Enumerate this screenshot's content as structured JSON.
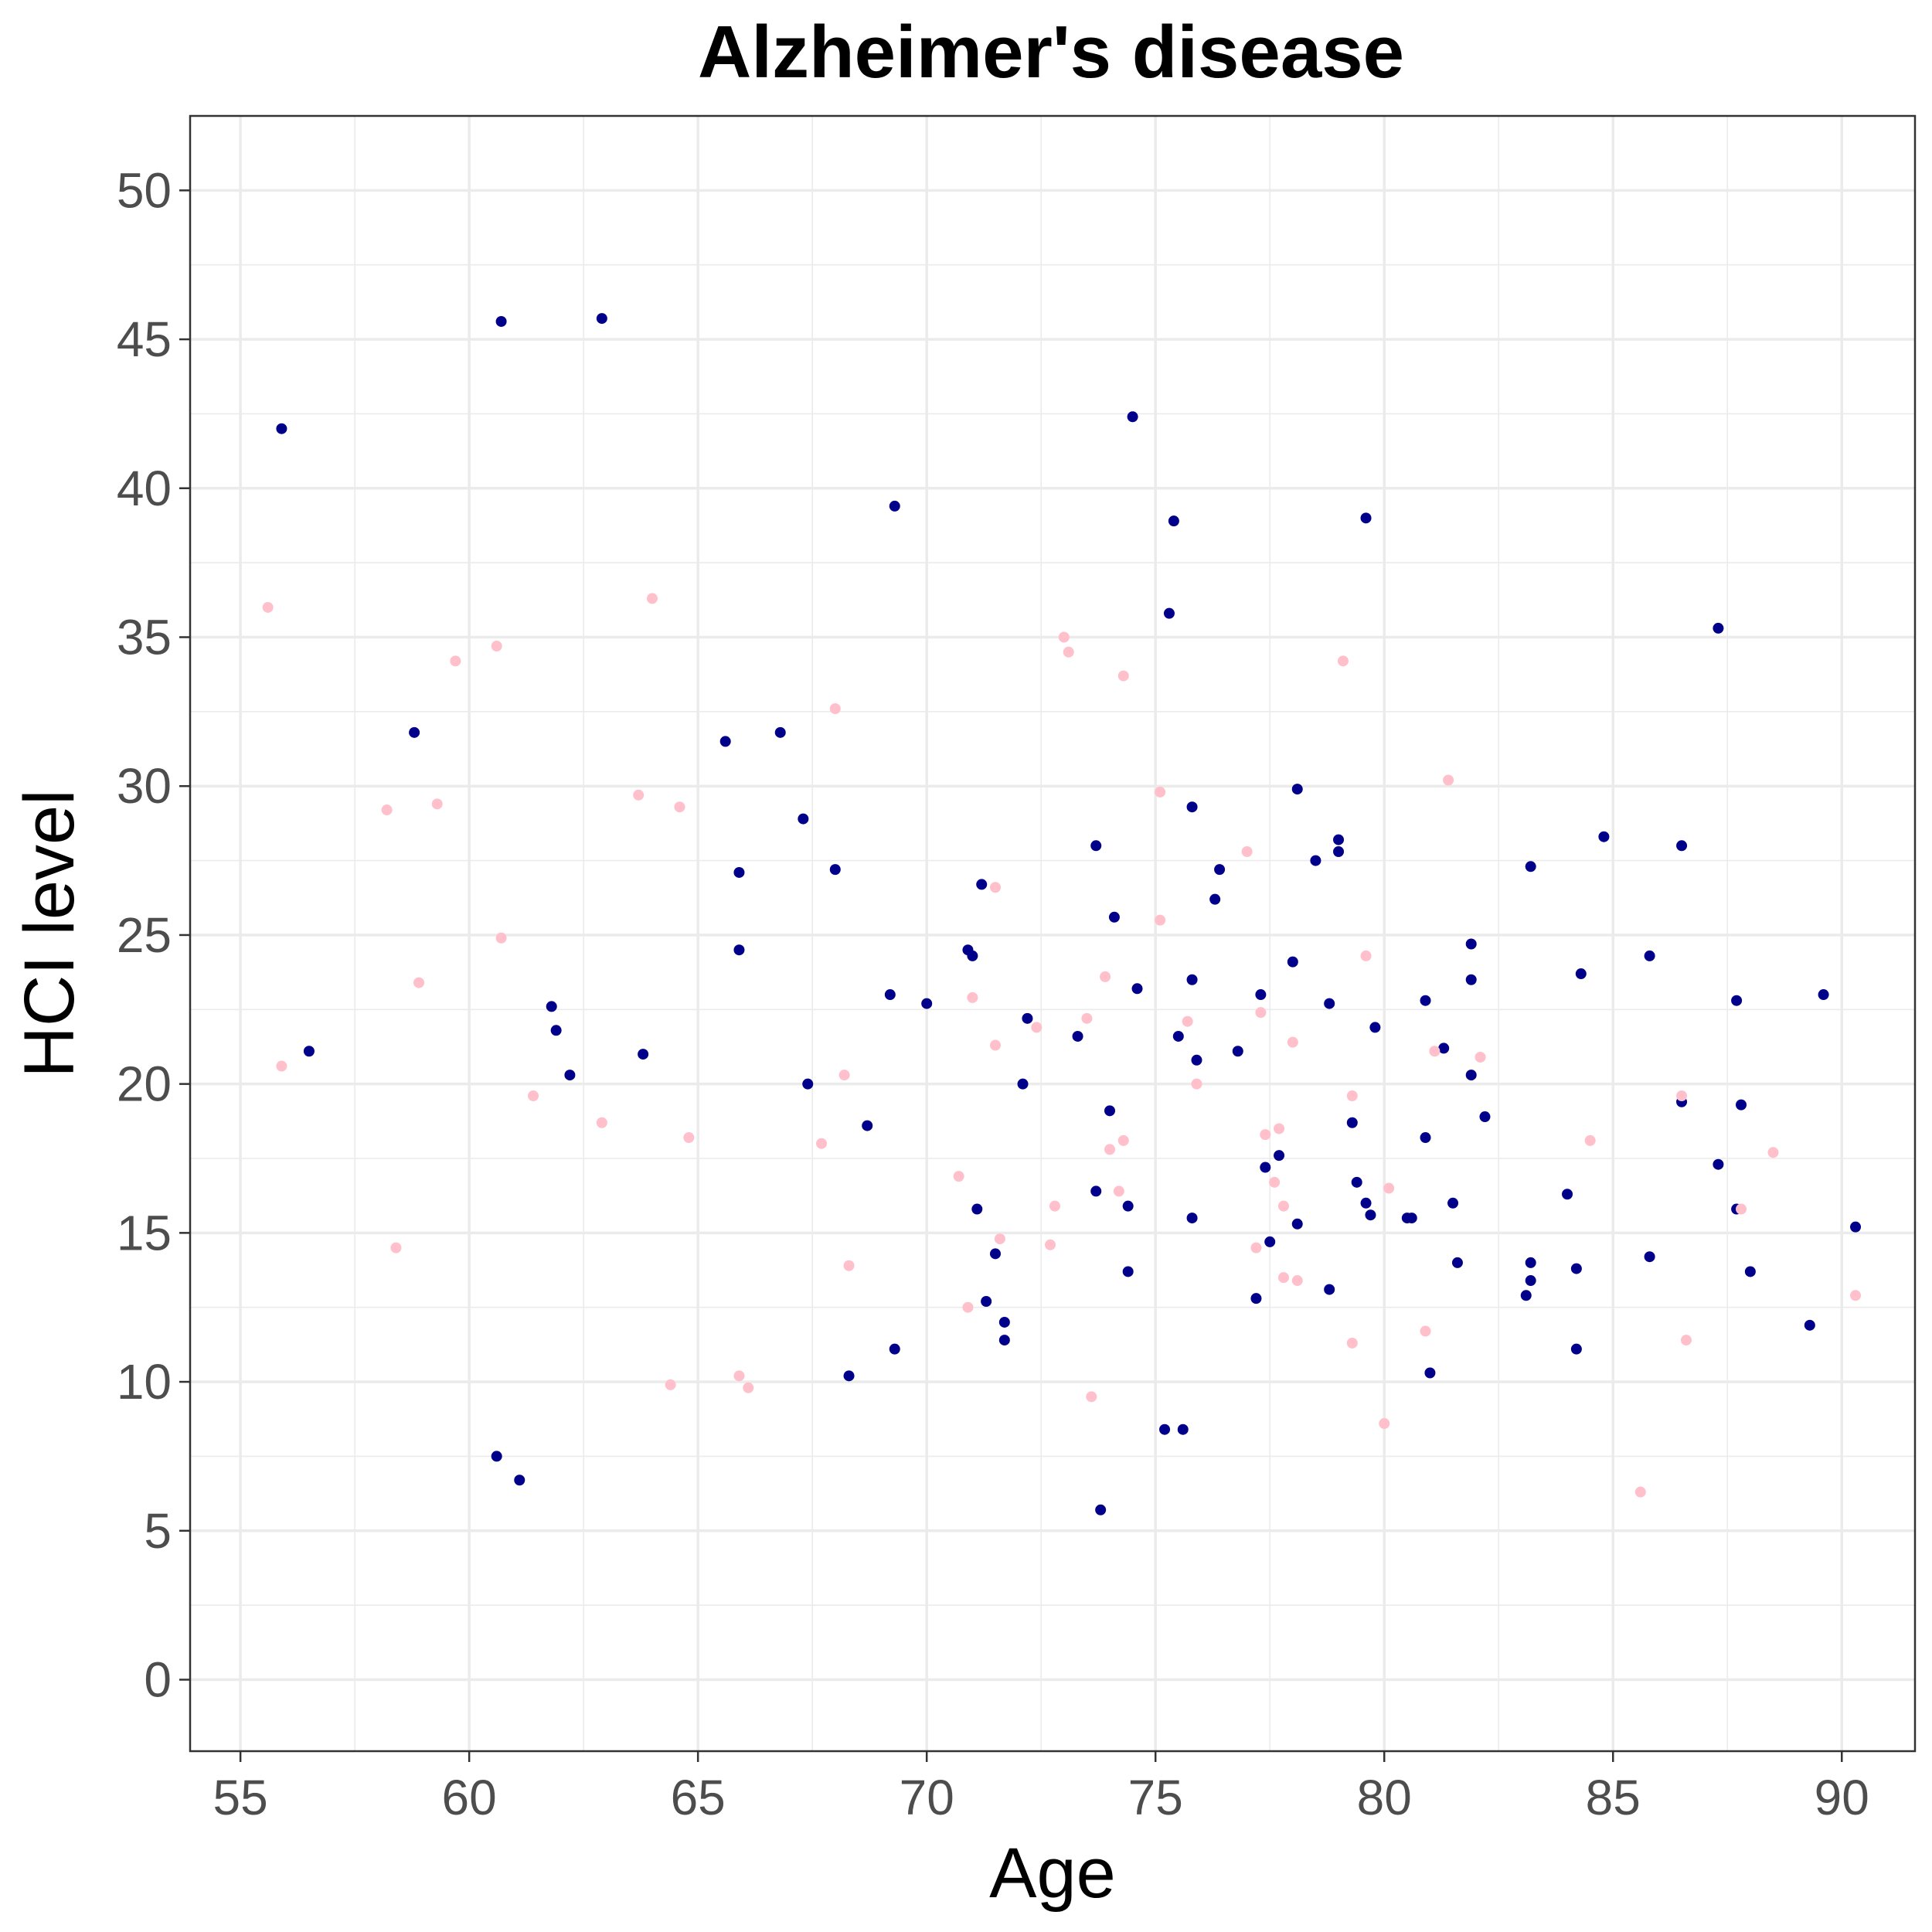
{
  "chart_data": {
    "type": "scatter",
    "title": "Alzheimer's disease",
    "xlabel": "Age",
    "ylabel": "HCI level",
    "xlim": [
      53.9,
      91.6
    ],
    "ylim": [
      -2.4,
      52.5
    ],
    "xticks": [
      55,
      60,
      65,
      70,
      75,
      80,
      85,
      90
    ],
    "xtick_labels": [
      "55",
      "60",
      "65",
      "70",
      "75",
      "80",
      "85",
      "90"
    ],
    "yticks": [
      0,
      5,
      10,
      15,
      20,
      25,
      30,
      35,
      40,
      45,
      50
    ],
    "ytick_labels": [
      "0",
      "5",
      "10",
      "15",
      "20",
      "25",
      "30",
      "35",
      "40",
      "45",
      "50"
    ],
    "grid": true,
    "legend": "none",
    "series": [
      {
        "color": "#00008b",
        "points": [
          [
            55.9,
            42.0
          ],
          [
            56.5,
            21.1
          ],
          [
            58.8,
            31.8
          ],
          [
            60.6,
            7.5
          ],
          [
            60.7,
            45.6
          ],
          [
            61.1,
            6.7
          ],
          [
            61.8,
            22.6
          ],
          [
            61.9,
            21.8
          ],
          [
            62.2,
            20.3
          ],
          [
            62.9,
            45.7
          ],
          [
            63.8,
            21.0
          ],
          [
            65.6,
            31.5
          ],
          [
            65.9,
            27.1
          ],
          [
            65.9,
            24.5
          ],
          [
            66.8,
            31.8
          ],
          [
            67.3,
            28.9
          ],
          [
            67.4,
            20.0
          ],
          [
            68.0,
            27.2
          ],
          [
            68.3,
            10.2
          ],
          [
            68.7,
            18.6
          ],
          [
            69.2,
            23.0
          ],
          [
            69.3,
            11.1
          ],
          [
            69.3,
            39.4
          ],
          [
            70.0,
            22.7
          ],
          [
            70.9,
            24.5
          ],
          [
            71.0,
            24.3
          ],
          [
            71.1,
            15.8
          ],
          [
            71.2,
            26.7
          ],
          [
            71.3,
            12.7
          ],
          [
            71.5,
            14.3
          ],
          [
            71.7,
            12.0
          ],
          [
            71.7,
            11.4
          ],
          [
            72.1,
            20.0
          ],
          [
            72.2,
            22.2
          ],
          [
            73.3,
            21.6
          ],
          [
            73.7,
            28.0
          ],
          [
            73.7,
            16.4
          ],
          [
            73.8,
            5.7
          ],
          [
            74.0,
            19.1
          ],
          [
            74.1,
            25.6
          ],
          [
            74.4,
            15.9
          ],
          [
            74.4,
            13.7
          ],
          [
            74.5,
            42.4
          ],
          [
            74.6,
            23.2
          ],
          [
            75.2,
            8.4
          ],
          [
            75.3,
            35.8
          ],
          [
            75.4,
            38.9
          ],
          [
            75.5,
            21.6
          ],
          [
            75.6,
            8.4
          ],
          [
            75.8,
            29.3
          ],
          [
            75.8,
            23.5
          ],
          [
            75.8,
            15.5
          ],
          [
            75.9,
            20.8
          ],
          [
            76.3,
            26.2
          ],
          [
            76.4,
            27.2
          ],
          [
            76.8,
            21.1
          ],
          [
            77.2,
            12.8
          ],
          [
            77.3,
            23.0
          ],
          [
            77.4,
            17.2
          ],
          [
            77.5,
            14.7
          ],
          [
            77.7,
            17.6
          ],
          [
            78.0,
            24.1
          ],
          [
            78.1,
            29.9
          ],
          [
            78.1,
            15.3
          ],
          [
            78.5,
            27.5
          ],
          [
            78.8,
            22.7
          ],
          [
            78.8,
            13.1
          ],
          [
            79.0,
            28.2
          ],
          [
            79.0,
            27.8
          ],
          [
            79.3,
            18.7
          ],
          [
            79.4,
            16.7
          ],
          [
            79.6,
            39.0
          ],
          [
            79.6,
            16.0
          ],
          [
            79.7,
            15.6
          ],
          [
            79.8,
            21.9
          ],
          [
            80.5,
            15.5
          ],
          [
            80.6,
            15.5
          ],
          [
            80.9,
            22.8
          ],
          [
            80.9,
            18.2
          ],
          [
            81.0,
            10.3
          ],
          [
            81.3,
            21.2
          ],
          [
            81.5,
            16.0
          ],
          [
            81.6,
            14.0
          ],
          [
            81.9,
            24.7
          ],
          [
            81.9,
            23.5
          ],
          [
            81.9,
            20.3
          ],
          [
            82.2,
            18.9
          ],
          [
            83.1,
            12.9
          ],
          [
            83.2,
            14.0
          ],
          [
            83.2,
            13.4
          ],
          [
            83.2,
            27.3
          ],
          [
            84.0,
            16.3
          ],
          [
            84.2,
            13.8
          ],
          [
            84.2,
            11.1
          ],
          [
            84.3,
            23.7
          ],
          [
            84.8,
            28.3
          ],
          [
            85.8,
            24.3
          ],
          [
            85.8,
            14.2
          ],
          [
            86.5,
            28.0
          ],
          [
            86.5,
            19.4
          ],
          [
            87.3,
            35.3
          ],
          [
            87.3,
            17.3
          ],
          [
            87.7,
            22.8
          ],
          [
            87.7,
            15.8
          ],
          [
            87.8,
            19.3
          ],
          [
            88.0,
            13.7
          ],
          [
            89.3,
            11.9
          ],
          [
            89.6,
            23.0
          ],
          [
            90.3,
            15.2
          ]
        ]
      },
      {
        "color": "#ffc0cb",
        "points": [
          [
            55.6,
            36.0
          ],
          [
            55.9,
            20.6
          ],
          [
            58.2,
            29.2
          ],
          [
            58.4,
            14.5
          ],
          [
            58.9,
            23.4
          ],
          [
            59.3,
            29.4
          ],
          [
            59.7,
            34.2
          ],
          [
            60.6,
            34.7
          ],
          [
            60.7,
            24.9
          ],
          [
            61.4,
            19.6
          ],
          [
            62.9,
            18.7
          ],
          [
            63.7,
            29.7
          ],
          [
            64.0,
            36.3
          ],
          [
            64.4,
            9.9
          ],
          [
            64.6,
            29.3
          ],
          [
            64.8,
            18.2
          ],
          [
            65.9,
            10.2
          ],
          [
            66.1,
            9.8
          ],
          [
            67.7,
            18.0
          ],
          [
            68.0,
            32.6
          ],
          [
            68.2,
            20.3
          ],
          [
            68.3,
            13.9
          ],
          [
            70.7,
            16.9
          ],
          [
            70.9,
            12.5
          ],
          [
            71.0,
            22.9
          ],
          [
            71.5,
            26.6
          ],
          [
            71.5,
            21.3
          ],
          [
            71.6,
            14.8
          ],
          [
            72.4,
            21.9
          ],
          [
            72.7,
            14.6
          ],
          [
            72.8,
            15.9
          ],
          [
            73.0,
            35.0
          ],
          [
            73.1,
            34.5
          ],
          [
            73.5,
            22.2
          ],
          [
            73.6,
            9.5
          ],
          [
            73.9,
            23.6
          ],
          [
            74.0,
            17.8
          ],
          [
            74.2,
            16.4
          ],
          [
            74.3,
            33.7
          ],
          [
            74.3,
            18.1
          ],
          [
            75.1,
            29.8
          ],
          [
            75.1,
            25.5
          ],
          [
            75.7,
            22.1
          ],
          [
            75.9,
            20.0
          ],
          [
            77.0,
            27.8
          ],
          [
            77.2,
            14.5
          ],
          [
            77.3,
            22.4
          ],
          [
            77.4,
            18.3
          ],
          [
            77.6,
            16.7
          ],
          [
            77.7,
            18.5
          ],
          [
            77.8,
            15.9
          ],
          [
            77.8,
            13.5
          ],
          [
            78.0,
            21.4
          ],
          [
            78.1,
            13.4
          ],
          [
            79.1,
            34.2
          ],
          [
            79.3,
            19.6
          ],
          [
            79.3,
            11.3
          ],
          [
            79.6,
            24.3
          ],
          [
            80.0,
            8.6
          ],
          [
            80.1,
            16.5
          ],
          [
            80.9,
            11.7
          ],
          [
            81.1,
            21.1
          ],
          [
            81.4,
            30.2
          ],
          [
            82.1,
            20.9
          ],
          [
            84.5,
            18.1
          ],
          [
            85.6,
            6.3
          ],
          [
            86.5,
            19.6
          ],
          [
            86.6,
            11.4
          ],
          [
            87.8,
            15.8
          ],
          [
            88.5,
            17.7
          ],
          [
            90.3,
            12.9
          ]
        ]
      }
    ]
  }
}
